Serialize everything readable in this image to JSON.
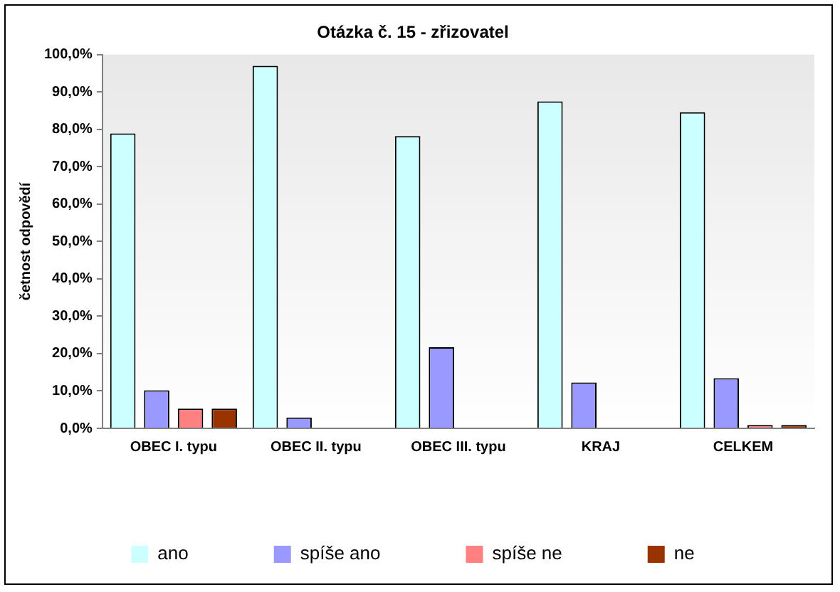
{
  "chart_data": {
    "type": "bar",
    "title": "Otázka č. 15 - zřizovatel",
    "ylabel": "četnost odpovědí",
    "categories": [
      "OBEC I. typu",
      "OBEC II. typu",
      "OBEC III. typu",
      "KRAJ",
      "CELKEM"
    ],
    "series": [
      {
        "name": "ano",
        "color": "#ccffff",
        "values": [
          78.9,
          97.0,
          78.2,
          87.5,
          84.6
        ]
      },
      {
        "name": "spíše ano",
        "color": "#9999ff",
        "values": [
          10.2,
          2.9,
          21.7,
          12.3,
          13.4
        ]
      },
      {
        "name": "spíše ne",
        "color": "#ff8080",
        "values": [
          5.3,
          0,
          0,
          0,
          0.9
        ]
      },
      {
        "name": "ne",
        "color": "#993300",
        "values": [
          5.3,
          0,
          0,
          0,
          0.9
        ]
      }
    ],
    "ylim": [
      0,
      100
    ],
    "yticks": [
      {
        "value": 0,
        "label": "0,0%"
      },
      {
        "value": 10,
        "label": "10,0%"
      },
      {
        "value": 20,
        "label": "20,0%"
      },
      {
        "value": 30,
        "label": "30,0%"
      },
      {
        "value": 40,
        "label": "40,0%"
      },
      {
        "value": 50,
        "label": "50,0%"
      },
      {
        "value": 60,
        "label": "60,0%"
      },
      {
        "value": 70,
        "label": "70,0%"
      },
      {
        "value": 80,
        "label": "80,0%"
      },
      {
        "value": 90,
        "label": "90,0%"
      },
      {
        "value": 100,
        "label": "100,0%"
      }
    ],
    "grid": false,
    "legend": "bottom"
  }
}
